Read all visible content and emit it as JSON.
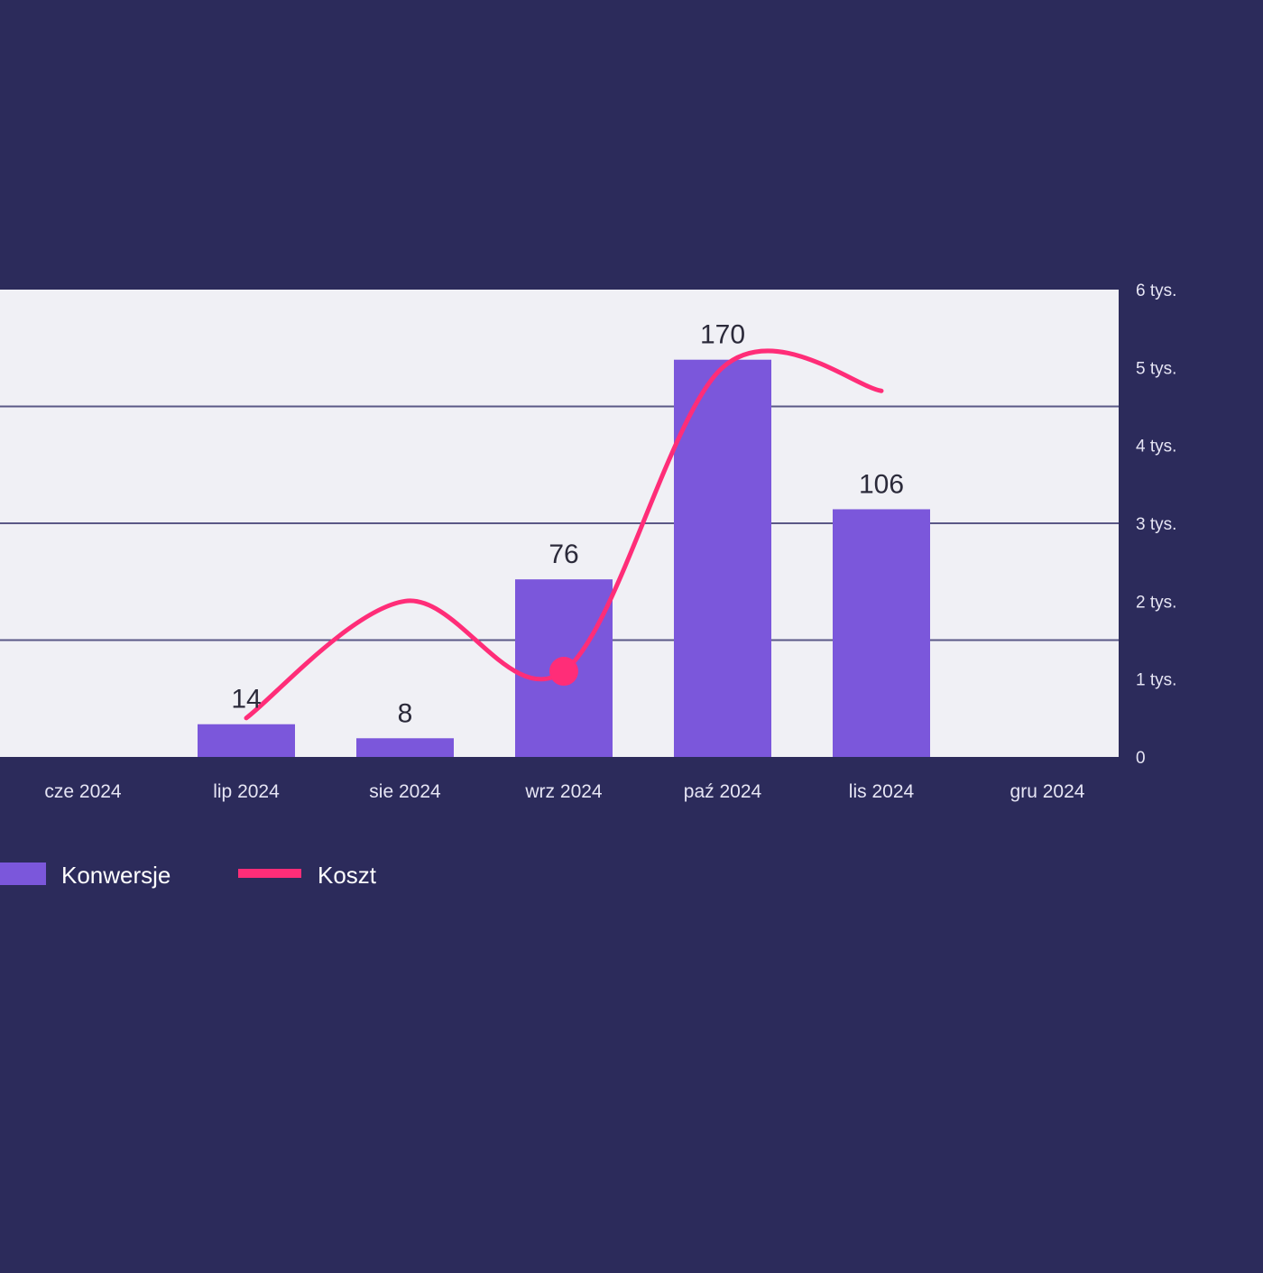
{
  "chart_data": {
    "type": "bar",
    "categories": [
      "cze 2024",
      "lip 2024",
      "sie 2024",
      "wrz 2024",
      "paź 2024",
      "lis 2024",
      "gru 2024"
    ],
    "series": [
      {
        "name": "Konwersje",
        "type": "bar",
        "axis": "left",
        "values": [
          null,
          14,
          8,
          76,
          170,
          106,
          null
        ],
        "data_labels": [
          "",
          "14",
          "8",
          "76",
          "170",
          "106",
          ""
        ],
        "color": "#7b57db"
      },
      {
        "name": "Koszt",
        "type": "line",
        "axis": "right",
        "smooth": true,
        "values": [
          null,
          500,
          2000,
          1100,
          5000,
          4700,
          null
        ],
        "color": "#ff2d78"
      }
    ],
    "left_axis": {
      "ylim": [
        0,
        200
      ]
    },
    "right_axis": {
      "ylim": [
        0,
        6000
      ],
      "ticks": [
        0,
        1000,
        2000,
        3000,
        4000,
        5000,
        6000
      ],
      "tick_labels": [
        "0",
        "1 tys.",
        "2 tys.",
        "3 tys.",
        "4 tys.",
        "5 tys.",
        "6 tys."
      ]
    },
    "grid": true,
    "legend": {
      "position": "bottom-left",
      "entries": [
        "Konwersje",
        "Koszt"
      ]
    },
    "highlight": {
      "series": "Koszt",
      "category": "wrz 2024"
    },
    "colors": {
      "background": "#2c2b5b",
      "plot_background": "#f0f0f5",
      "gridline": "#5a5886",
      "bar": "#7b57db",
      "line": "#ff2d78"
    }
  }
}
